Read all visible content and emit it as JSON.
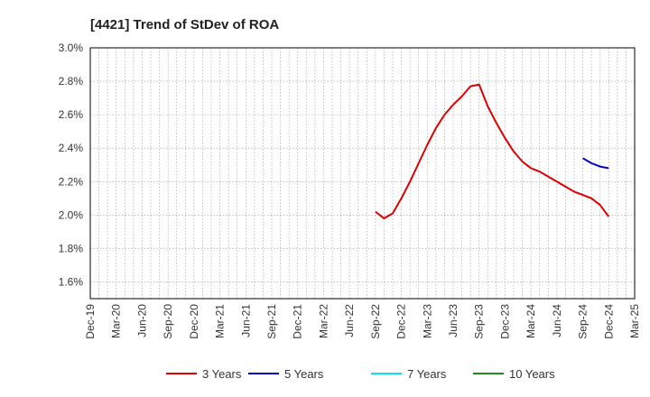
{
  "chart_data": {
    "type": "line",
    "title": "[4421]  Trend of StDev of ROA",
    "xlabel": "",
    "ylabel": "",
    "ylim": [
      1.5,
      3.0
    ],
    "yticks": [
      1.6,
      1.8,
      2.0,
      2.2,
      2.4,
      2.6,
      2.8,
      3.0
    ],
    "ytick_labels": [
      "1.6%",
      "1.8%",
      "2.0%",
      "2.2%",
      "2.4%",
      "2.6%",
      "2.8%",
      "3.0%"
    ],
    "x_tick_labels": [
      "Dec-19",
      "Mar-20",
      "Jun-20",
      "Sep-20",
      "Dec-20",
      "Mar-21",
      "Jun-21",
      "Sep-21",
      "Dec-21",
      "Mar-22",
      "Jun-22",
      "Sep-22",
      "Dec-22",
      "Mar-23",
      "Jun-23",
      "Sep-23",
      "Dec-23",
      "Mar-24",
      "Jun-24",
      "Sep-24",
      "Dec-24",
      "Mar-25"
    ],
    "grid": true,
    "legend_position": "bottom",
    "series": [
      {
        "name": "3 Years",
        "color": "#dd0000",
        "points": [
          [
            "Sep-22",
            2.02
          ],
          [
            "Oct-22",
            1.98
          ],
          [
            "Nov-22",
            2.01
          ],
          [
            "Dec-22",
            2.1
          ],
          [
            "Jan-23",
            2.2
          ],
          [
            "Feb-23",
            2.31
          ],
          [
            "Mar-23",
            2.42
          ],
          [
            "Apr-23",
            2.52
          ],
          [
            "May-23",
            2.6
          ],
          [
            "Jun-23",
            2.66
          ],
          [
            "Jul-23",
            2.71
          ],
          [
            "Aug-23",
            2.77
          ],
          [
            "Sep-23",
            2.78
          ],
          [
            "Oct-23",
            2.65
          ],
          [
            "Nov-23",
            2.55
          ],
          [
            "Dec-23",
            2.46
          ],
          [
            "Jan-24",
            2.38
          ],
          [
            "Feb-24",
            2.32
          ],
          [
            "Mar-24",
            2.28
          ],
          [
            "Apr-24",
            2.26
          ],
          [
            "May-24",
            2.23
          ],
          [
            "Jun-24",
            2.2
          ],
          [
            "Jul-24",
            2.17
          ],
          [
            "Aug-24",
            2.14
          ],
          [
            "Sep-24",
            2.12
          ],
          [
            "Oct-24",
            2.1
          ],
          [
            "Nov-24",
            2.06
          ],
          [
            "Dec-24",
            1.99
          ]
        ]
      },
      {
        "name": "5 Years",
        "color": "#0000cc",
        "points": [
          [
            "Sep-24",
            2.34
          ],
          [
            "Oct-24",
            2.31
          ],
          [
            "Nov-24",
            2.29
          ],
          [
            "Dec-24",
            2.28
          ]
        ]
      },
      {
        "name": "7 Years",
        "color": "#00e5ee",
        "points": []
      },
      {
        "name": "10 Years",
        "color": "#228b22",
        "points": []
      }
    ]
  }
}
